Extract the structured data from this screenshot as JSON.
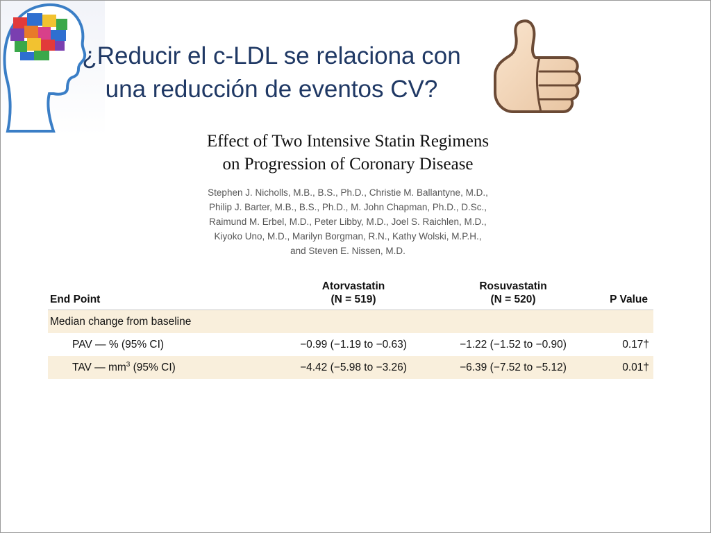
{
  "slide": {
    "title_line1": "¿Reducir el c-LDL se relaciona con",
    "title_line2": "una reducción de eventos CV?",
    "logo_icon": "head-puzzle-logo-icon",
    "thumb_icon": "thumbs-up-icon"
  },
  "article": {
    "title_line1": "Effect of Two Intensive Statin Regimens",
    "title_line2": "on Progression of Coronary Disease",
    "authors": [
      "Stephen J. Nicholls, M.B., B.S., Ph.D., Christie M. Ballantyne, M.D.,",
      "Philip J. Barter, M.B., B.S., Ph.D., M. John Chapman, Ph.D., D.Sc.,",
      "Raimund M. Erbel, M.D., Peter Libby, M.D., Joel S. Raichlen, M.D.,",
      "Kiyoko Uno, M.D., Marilyn Borgman, R.N., Kathy Wolski, M.P.H.,",
      "and Steven E. Nissen, M.D."
    ]
  },
  "table": {
    "headers": {
      "endpoint": "End Point",
      "atorva_name": "Atorvastatin",
      "atorva_n": "(N = 519)",
      "rosuva_name": "Rosuvastatin",
      "rosuva_n": "(N = 520)",
      "pvalue": "P Value"
    },
    "group_label": "Median change from baseline",
    "rows": [
      {
        "label": "PAV — % (95% CI)",
        "atorva": "−0.99 (−1.19 to −0.63)",
        "rosuva": "−1.22 (−1.52 to −0.90)",
        "p": "0.17†"
      },
      {
        "label_pre": "TAV — mm",
        "label_sup": "3",
        "label_post": " (95% CI)",
        "atorva": "−4.42 (−5.98 to −3.26)",
        "rosuva": "−6.39 (−7.52 to −5.12)",
        "p": "0.01†"
      }
    ]
  },
  "colors": {
    "title": "#1f3864",
    "table_shade": "#f9efdc"
  }
}
